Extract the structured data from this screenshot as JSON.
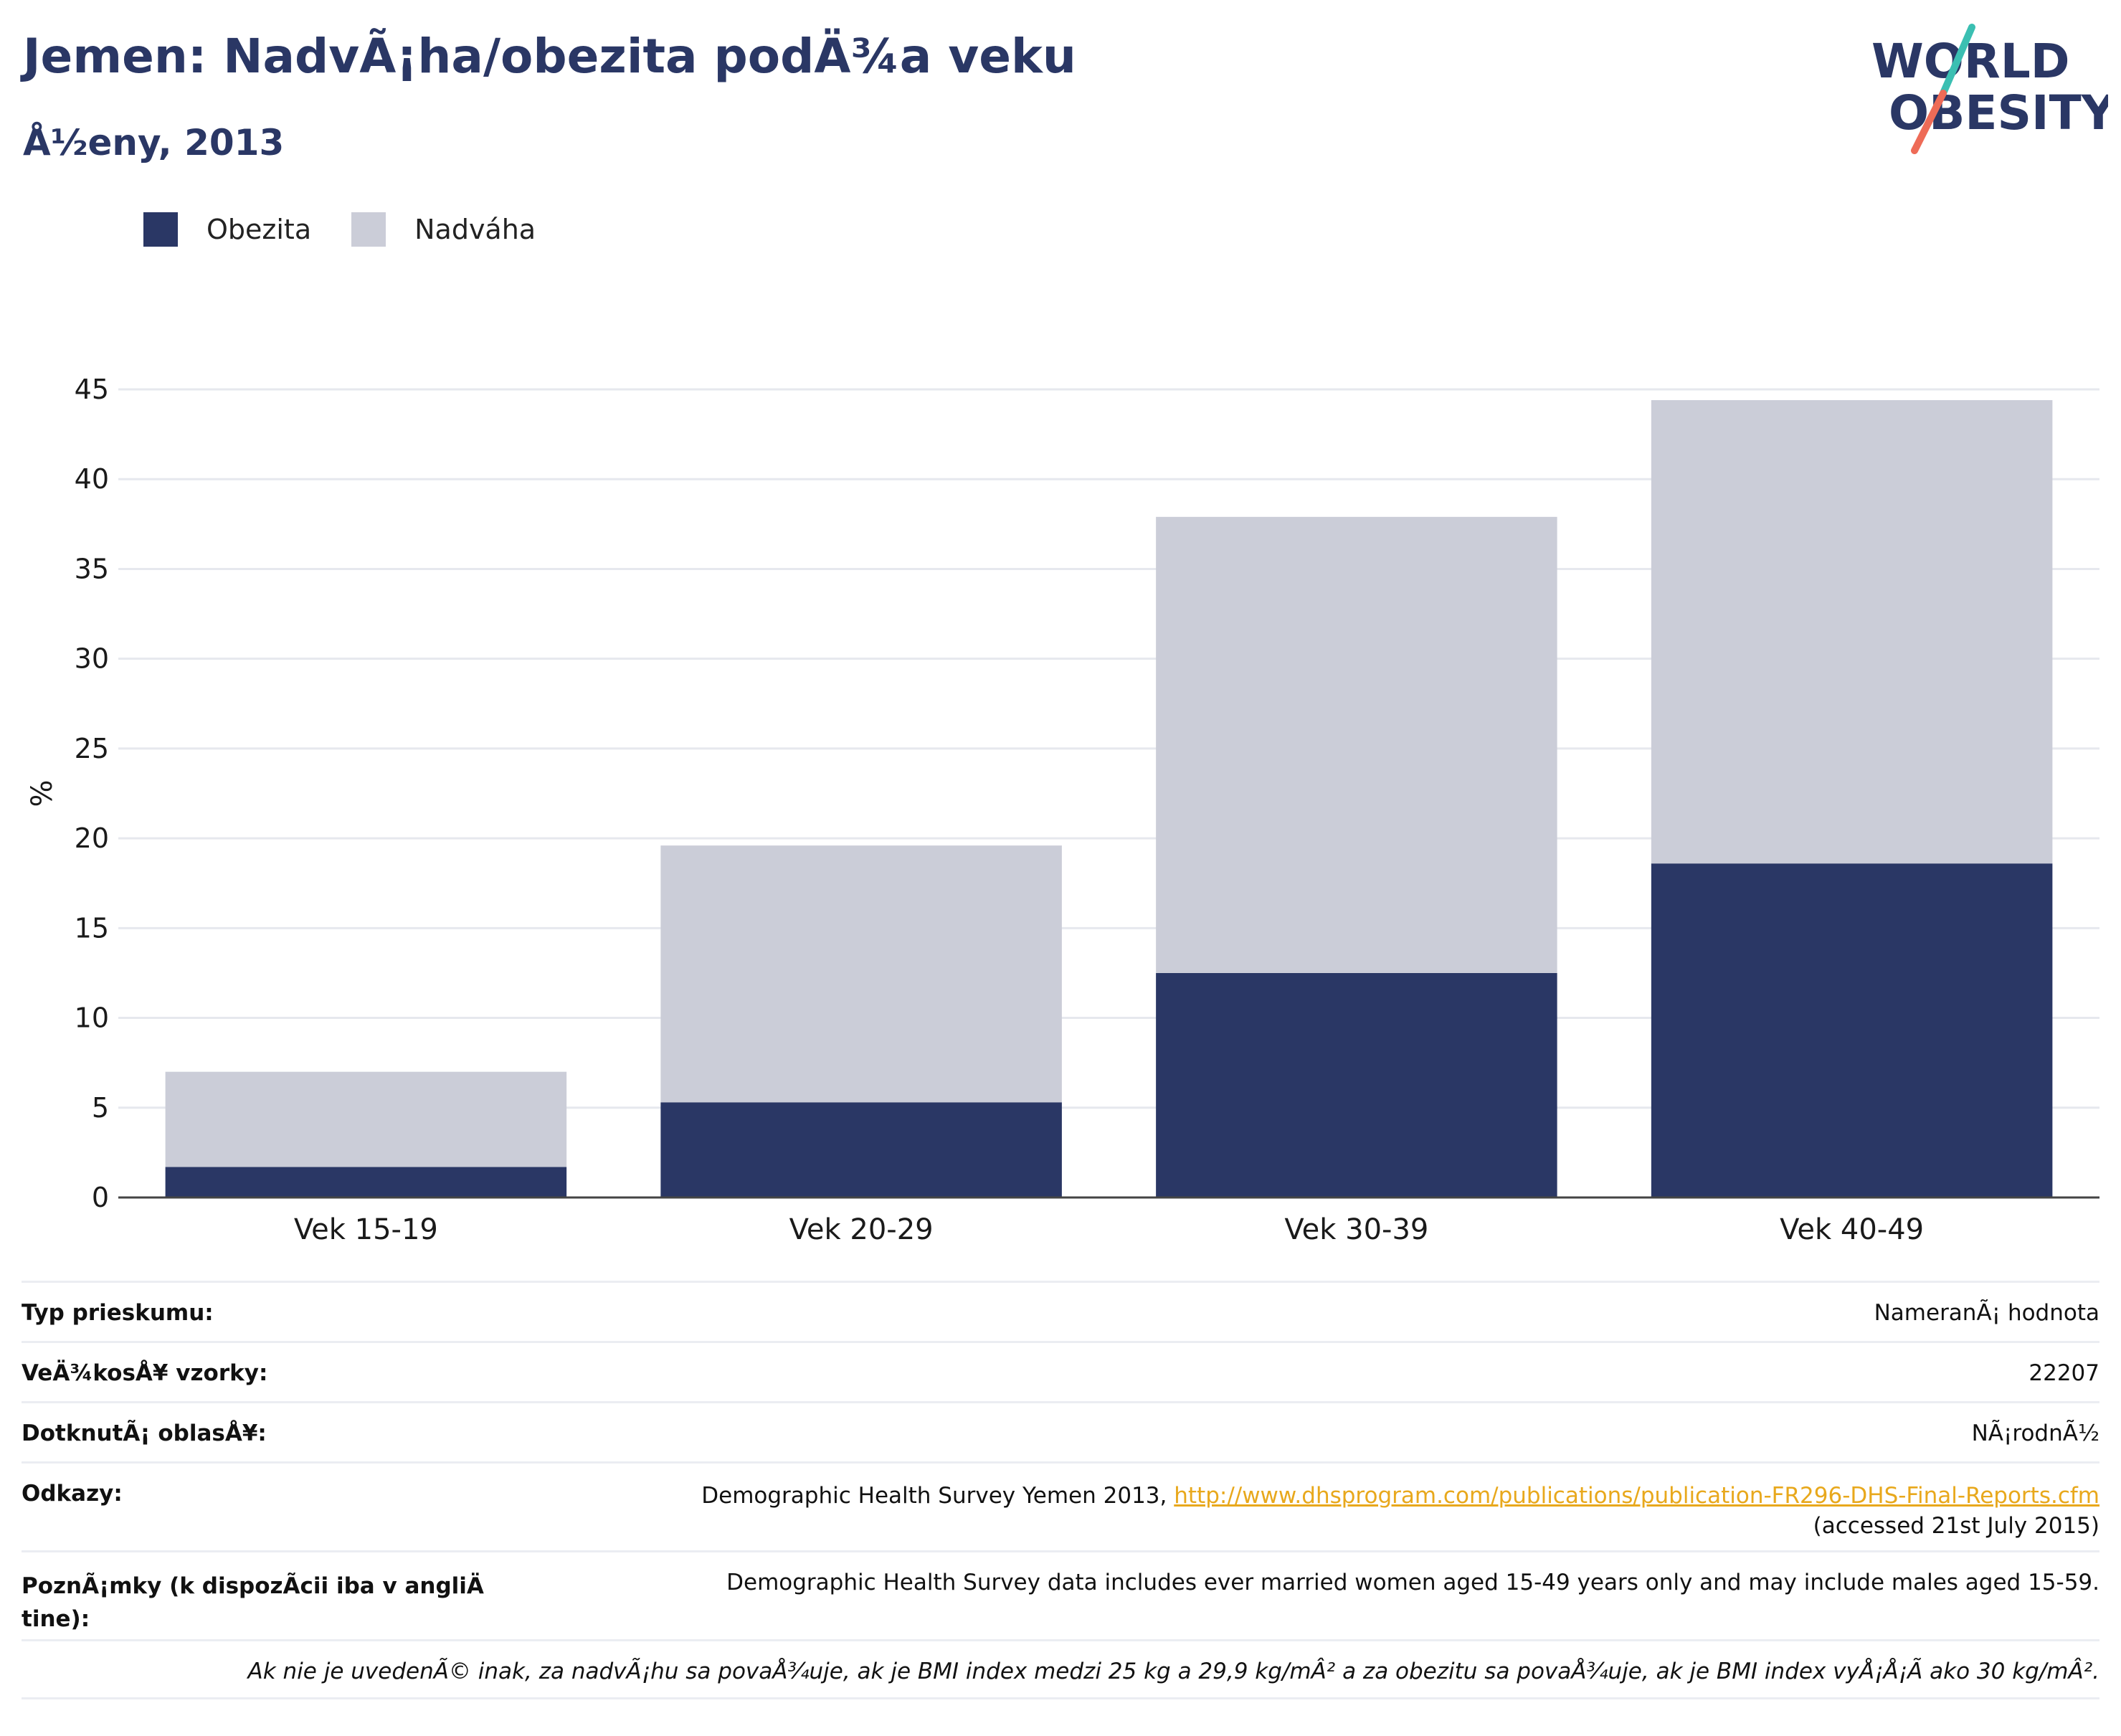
{
  "header": {
    "title": "Jemen: NadvÃ¡ha/obezita podÄ¾a veku",
    "subtitle": "Å½eny, 2013"
  },
  "logo": {
    "line1": "WORLD",
    "line2": "OBESITY",
    "accent_teal": "#3bbfb2",
    "accent_coral": "#ee6b57",
    "text_color": "#2a3765"
  },
  "legend": [
    {
      "label": "Obezita",
      "color": "#2a3765"
    },
    {
      "label": "Nadváha",
      "color": "#cbcdd8"
    }
  ],
  "chart_data": {
    "type": "bar",
    "stacked": true,
    "categories": [
      "Vek 15-19",
      "Vek 20-29",
      "Vek 30-39",
      "Vek 40-49"
    ],
    "series": [
      {
        "name": "Obezita",
        "values": [
          1.7,
          5.3,
          12.5,
          18.6
        ],
        "color": "#2a3765"
      },
      {
        "name": "Nadváha",
        "values": [
          5.3,
          14.3,
          25.4,
          25.8
        ],
        "color": "#cbcdd8"
      }
    ],
    "ylabel": "%",
    "xlabel": "",
    "ylim": [
      0,
      45
    ],
    "yticks": [
      0,
      5,
      10,
      15,
      20,
      25,
      30,
      35,
      40,
      45
    ],
    "grid": true,
    "legend_position": "top-left"
  },
  "info": {
    "survey_type": {
      "label": "Typ prieskumu:",
      "value": "NameranÃ¡ hodnota"
    },
    "sample_size": {
      "label": "VeÄ¾kosÅ¥ vzorky:",
      "value": "22207"
    },
    "area": {
      "label": "DotknutÃ¡ oblasÅ¥:",
      "value": "NÃ¡rodnÃ½"
    },
    "references": {
      "label": "Odkazy:",
      "text": "Demographic Health Survey Yemen 2013, ",
      "link": "http://www.dhsprogram.com/publications/publication-FR296-DHS-Final-Reports.cfm",
      "accessed": "(accessed 21st July 2015)"
    },
    "notes": {
      "label": "PoznÃ¡mky (k dispozÃcii iba v angliÄ tine):",
      "value": "Demographic Health Survey data includes ever married women aged 15-49 years only and may include males aged 15-59."
    },
    "footnote": "Ak nie je uvedenÃ© inak, za nadvÃ¡hu sa povaÅ¾uje, ak je BMI index medzi 25 kg a 29,9 kg/mÂ² a za obezitu sa povaÅ¾uje, ak je BMI index vyÅ¡Å¡Ã ako 30 kg/mÂ²."
  }
}
